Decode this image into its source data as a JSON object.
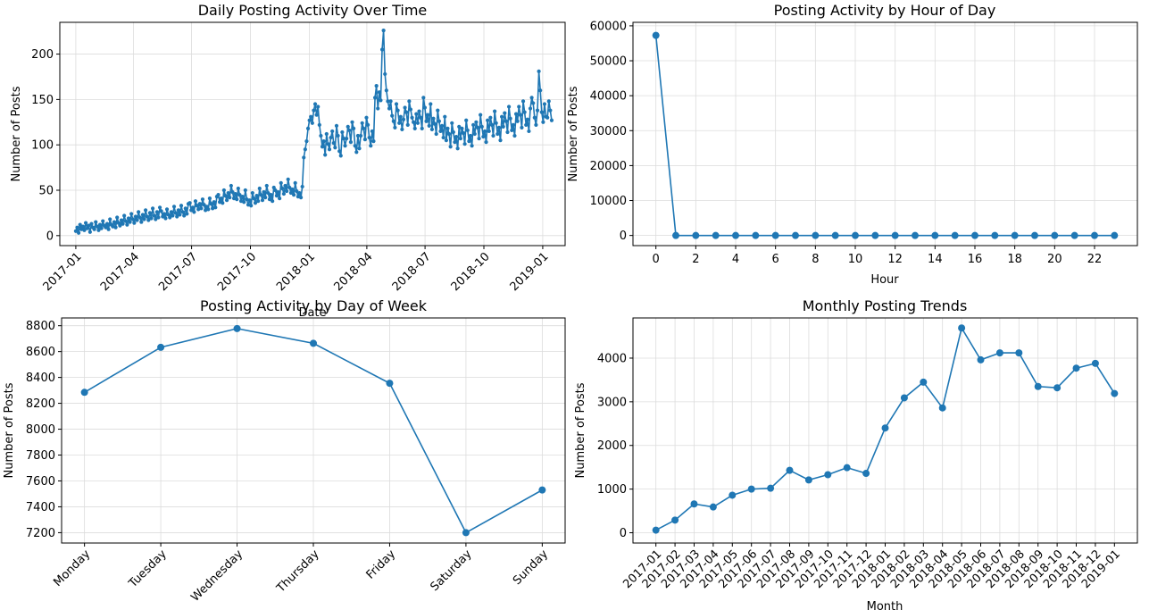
{
  "figure": {
    "line_color": "#1f77b4"
  },
  "chart_data": [
    {
      "type": "line",
      "title": "Daily Posting Activity Over Time",
      "xlabel": "Date",
      "ylabel": "Number of Posts",
      "x_range": [
        "2016-12-07",
        "2019-02-05"
      ],
      "ylim": [
        -11,
        235
      ],
      "x_ticks": [
        {
          "date": "2017-01-01",
          "label": "2017-01"
        },
        {
          "date": "2017-04-01",
          "label": "2017-04"
        },
        {
          "date": "2017-07-01",
          "label": "2017-07"
        },
        {
          "date": "2017-10-01",
          "label": "2017-10"
        },
        {
          "date": "2018-01-01",
          "label": "2018-01"
        },
        {
          "date": "2018-04-01",
          "label": "2018-04"
        },
        {
          "date": "2018-07-01",
          "label": "2018-07"
        },
        {
          "date": "2018-10-01",
          "label": "2018-10"
        },
        {
          "date": "2019-01-01",
          "label": "2019-01"
        }
      ],
      "y_ticks": [
        0,
        50,
        100,
        150,
        200
      ],
      "grid": true,
      "marker": "small-dot",
      "series": [
        {
          "x_start": "2017-01-01",
          "x_end": "2019-01-15",
          "values": [
            5,
            9,
            3,
            12,
            7,
            10,
            6,
            14,
            8,
            11,
            4,
            13,
            9,
            7,
            15,
            10,
            6,
            12,
            8,
            16,
            11,
            9,
            13,
            7,
            18,
            12,
            10,
            15,
            9,
            20,
            14,
            11,
            17,
            13,
            22,
            16,
            12,
            19,
            15,
            24,
            18,
            14,
            21,
            17,
            26,
            20,
            15,
            23,
            18,
            28,
            21,
            17,
            25,
            19,
            30,
            22,
            18,
            26,
            20,
            31,
            27,
            21,
            24,
            19,
            29,
            23,
            20,
            26,
            22,
            32,
            25,
            21,
            28,
            23,
            33,
            26,
            22,
            30,
            24,
            35,
            36,
            28,
            31,
            26,
            38,
            33,
            29,
            35,
            30,
            40,
            34,
            28,
            32,
            29,
            41,
            35,
            30,
            37,
            31,
            43,
            45,
            37,
            41,
            36,
            50,
            44,
            39,
            47,
            42,
            55,
            48,
            41,
            46,
            40,
            52,
            45,
            38,
            43,
            37,
            50,
            40,
            34,
            39,
            33,
            47,
            41,
            36,
            44,
            38,
            52,
            45,
            39,
            48,
            42,
            55,
            47,
            40,
            45,
            38,
            53,
            50,
            44,
            48,
            41,
            58,
            52,
            46,
            55,
            49,
            62,
            53,
            47,
            51,
            45,
            58,
            49,
            43,
            47,
            42,
            54,
            86,
            95,
            104,
            118,
            127,
            131,
            124,
            138,
            145,
            133,
            142,
            122,
            110,
            98,
            104,
            89,
            112,
            101,
            95,
            108,
            115,
            102,
            97,
            121,
            110,
            93,
            88,
            114,
            107,
            99,
            107,
            120,
            116,
            103,
            125,
            118,
            99,
            92,
            110,
            96,
            110,
            124,
            118,
            106,
            130,
            122,
            108,
            99,
            115,
            104,
            152,
            165,
            140,
            158,
            149,
            205,
            226,
            178,
            160,
            148,
            140,
            148,
            132,
            126,
            119,
            145,
            138,
            124,
            131,
            117,
            128,
            141,
            136,
            122,
            148,
            139,
            130,
            125,
            118,
            134,
            124,
            137,
            130,
            118,
            152,
            141,
            126,
            133,
            121,
            145,
            117,
            129,
            123,
            112,
            138,
            126,
            115,
            121,
            108,
            131,
            105,
            118,
            112,
            98,
            124,
            114,
            103,
            109,
            96,
            120,
            107,
            118,
            113,
            101,
            127,
            116,
            104,
            110,
            99,
            122,
            112,
            125,
            119,
            107,
            133,
            120,
            109,
            115,
            103,
            127,
            115,
            130,
            122,
            110,
            137,
            124,
            112,
            119,
            105,
            131,
            120,
            135,
            126,
            114,
            142,
            129,
            116,
            122,
            110,
            134,
            126,
            142,
            133,
            119,
            148,
            136,
            122,
            128,
            115,
            140,
            152,
            146,
            130,
            122,
            138,
            181,
            160,
            136,
            125,
            145,
            131,
            130,
            148,
            138,
            127
          ]
        }
      ]
    },
    {
      "type": "line",
      "title": "Posting Activity by Hour of Day",
      "xlabel": "Hour",
      "ylabel": "Number of Posts",
      "xlim": [
        -1.15,
        24.15
      ],
      "ylim": [
        -2900,
        61000
      ],
      "x_ticks": [
        0,
        2,
        4,
        6,
        8,
        10,
        12,
        14,
        16,
        18,
        20,
        22
      ],
      "y_ticks": [
        0,
        10000,
        20000,
        30000,
        40000,
        50000,
        60000
      ],
      "grid": true,
      "marker": "dot",
      "x": [
        0,
        1,
        2,
        3,
        4,
        5,
        6,
        7,
        8,
        9,
        10,
        11,
        12,
        13,
        14,
        15,
        16,
        17,
        18,
        19,
        20,
        21,
        22,
        23
      ],
      "values": [
        57260,
        0,
        0,
        0,
        0,
        0,
        0,
        0,
        0,
        0,
        0,
        0,
        0,
        0,
        0,
        0,
        0,
        0,
        0,
        0,
        0,
        0,
        0,
        0
      ]
    },
    {
      "type": "line",
      "title": "Posting Activity by Day of Week",
      "xlabel": "Day",
      "ylabel": "Number of Posts",
      "categories": [
        "Monday",
        "Tuesday",
        "Wednesday",
        "Thursday",
        "Friday",
        "Saturday",
        "Sunday"
      ],
      "ylim": [
        7120,
        8860
      ],
      "y_ticks": [
        7200,
        7400,
        7600,
        7800,
        8000,
        8200,
        8400,
        8600,
        8800
      ],
      "grid": true,
      "marker": "dot",
      "values": [
        8285,
        8633,
        8778,
        8664,
        8355,
        7200,
        7530
      ]
    },
    {
      "type": "line",
      "title": "Monthly Posting Trends",
      "xlabel": "Month",
      "ylabel": "Number of Posts",
      "categories": [
        "2017-01",
        "2017-02",
        "2017-03",
        "2017-04",
        "2017-05",
        "2017-06",
        "2017-07",
        "2017-08",
        "2017-09",
        "2017-10",
        "2017-11",
        "2017-12",
        "2018-01",
        "2018-02",
        "2018-03",
        "2018-04",
        "2018-05",
        "2018-06",
        "2018-07",
        "2018-08",
        "2018-09",
        "2018-10",
        "2018-11",
        "2018-12",
        "2019-01"
      ],
      "ylim": [
        -235,
        4920
      ],
      "y_ticks": [
        0,
        1000,
        2000,
        3000,
        4000
      ],
      "grid": true,
      "marker": "dot",
      "values": [
        60,
        290,
        660,
        590,
        860,
        1000,
        1020,
        1430,
        1210,
        1330,
        1490,
        1360,
        2400,
        3090,
        3450,
        2860,
        4690,
        3960,
        4120,
        4120,
        3350,
        3320,
        3770,
        3880,
        3190
      ]
    }
  ]
}
